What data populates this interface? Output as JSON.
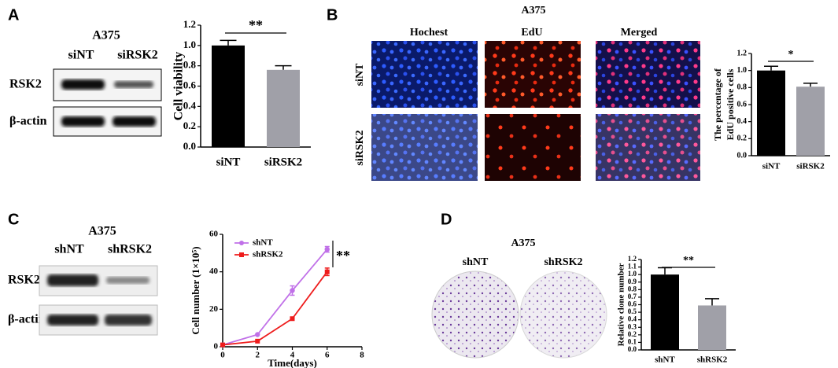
{
  "panel_labels": [
    "A",
    "B",
    "C",
    "D"
  ],
  "blot_A": {
    "title": "A375",
    "lanes": [
      "siNT",
      "siRSK2"
    ],
    "rows": [
      "RSK2",
      "β-actin"
    ]
  },
  "edu_B": {
    "title": "A375",
    "columns": [
      "Hochest",
      "EdU",
      "Merged"
    ],
    "rows": [
      "siNT",
      "siRSK2"
    ]
  },
  "blot_C": {
    "title": "A375",
    "lanes": [
      "shNT",
      "shRSK2"
    ],
    "rows": [
      "RSK2",
      "β-actin"
    ]
  },
  "colony_D": {
    "title": "A375",
    "columns": [
      "shNT",
      "shRSK2"
    ]
  },
  "chart_data": [
    {
      "type": "bar",
      "ylabel": [
        "Cell viability"
      ],
      "categories": [
        "siNT",
        "siRSK2"
      ],
      "values": [
        1.0,
        0.76
      ],
      "errors": [
        0.05,
        0.04
      ],
      "colors": [
        "#000000",
        "#a0a0a8"
      ],
      "annotation": "**",
      "ylim": [
        0,
        1.2
      ],
      "yticks": [
        {
          "value": 0,
          "label": "0.0"
        },
        0.2,
        0.4,
        0.6,
        0.8,
        {
          "value": 1,
          "label": "1.0"
        },
        1.2
      ]
    },
    {
      "type": "bar",
      "ylabel": [
        "The percentage of",
        "EdU positive cells"
      ],
      "categories": [
        "siNT",
        "siRSK2"
      ],
      "values": [
        1.0,
        0.81
      ],
      "errors": [
        0.05,
        0.04
      ],
      "colors": [
        "#000000",
        "#a0a0a8"
      ],
      "annotation": "*",
      "ylim": [
        0,
        1.2
      ],
      "yticks": [
        {
          "value": 0,
          "label": "0.0"
        },
        0.2,
        0.4,
        0.6,
        0.8,
        {
          "value": 1,
          "label": "1.0"
        },
        1.2
      ]
    },
    {
      "type": "line",
      "ylabel": [
        "Cell number (1×10⁵)"
      ],
      "xlabel": "Time(days)",
      "x": [
        0,
        2,
        4,
        6
      ],
      "series": [
        {
          "name": "shNT",
          "color": "#c070e8",
          "marker": "circle",
          "values": [
            1,
            6.5,
            30,
            52
          ],
          "errors": [
            null,
            null,
            2.5,
            1.5
          ]
        },
        {
          "name": "shRSK2",
          "color": "#ee1c1c",
          "marker": "square",
          "values": [
            1,
            3,
            15,
            40
          ],
          "errors": [
            null,
            null,
            null,
            2
          ]
        }
      ],
      "annotation": "**",
      "xlim": [
        0,
        8
      ],
      "xticks": [
        0,
        2,
        4,
        6,
        8
      ],
      "ylim": [
        0,
        60
      ],
      "yticks": [
        0,
        20,
        40,
        60
      ]
    },
    {
      "type": "bar",
      "ylabel": [
        "Relative clone number"
      ],
      "categories": [
        "shNT",
        "shRSK2"
      ],
      "values": [
        1.0,
        0.59
      ],
      "errors": [
        0.09,
        0.09
      ],
      "colors": [
        "#000000",
        "#a0a0a8"
      ],
      "annotation": "**",
      "ylim": [
        0,
        1.2
      ],
      "yticks": [
        {
          "value": 0,
          "label": "0.0"
        },
        0.1,
        0.2,
        0.3,
        0.4,
        0.5,
        0.6,
        0.7,
        0.8,
        0.9,
        {
          "value": 1,
          "label": "1.0"
        },
        1.1,
        1.2
      ]
    }
  ]
}
